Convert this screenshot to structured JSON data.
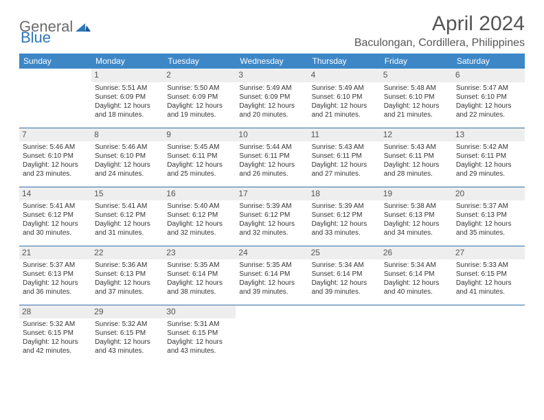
{
  "logo": {
    "general": "General",
    "blue": "Blue"
  },
  "title": "April 2024",
  "location": "Baculongan, Cordillera, Philippines",
  "dayHeaders": [
    "Sunday",
    "Monday",
    "Tuesday",
    "Wednesday",
    "Thursday",
    "Friday",
    "Saturday"
  ],
  "colors": {
    "headerBg": "#3d87c7",
    "headerText": "#ffffff",
    "dayNumBg": "#eeeeee",
    "rowBorder": "#2e6da4",
    "logoGray": "#6a6a6a",
    "logoBlue": "#2e77b8",
    "bodyText": "#333333",
    "titleText": "#555555"
  },
  "typography": {
    "titleFontSize": 30,
    "locationFontSize": 16,
    "headerFontSize": 12,
    "dayNumFontSize": 12,
    "cellFontSize": 10
  },
  "layout": {
    "weeks": 5,
    "cols": 7,
    "cellHeight": 86,
    "pageWidth": 792,
    "pageHeight": 612
  },
  "startOffset": 1,
  "days": [
    {
      "n": "1",
      "sunrise": "5:51 AM",
      "sunset": "6:09 PM",
      "dl": "12 hours and 18 minutes."
    },
    {
      "n": "2",
      "sunrise": "5:50 AM",
      "sunset": "6:09 PM",
      "dl": "12 hours and 19 minutes."
    },
    {
      "n": "3",
      "sunrise": "5:49 AM",
      "sunset": "6:09 PM",
      "dl": "12 hours and 20 minutes."
    },
    {
      "n": "4",
      "sunrise": "5:49 AM",
      "sunset": "6:10 PM",
      "dl": "12 hours and 21 minutes."
    },
    {
      "n": "5",
      "sunrise": "5:48 AM",
      "sunset": "6:10 PM",
      "dl": "12 hours and 21 minutes."
    },
    {
      "n": "6",
      "sunrise": "5:47 AM",
      "sunset": "6:10 PM",
      "dl": "12 hours and 22 minutes."
    },
    {
      "n": "7",
      "sunrise": "5:46 AM",
      "sunset": "6:10 PM",
      "dl": "12 hours and 23 minutes."
    },
    {
      "n": "8",
      "sunrise": "5:46 AM",
      "sunset": "6:10 PM",
      "dl": "12 hours and 24 minutes."
    },
    {
      "n": "9",
      "sunrise": "5:45 AM",
      "sunset": "6:11 PM",
      "dl": "12 hours and 25 minutes."
    },
    {
      "n": "10",
      "sunrise": "5:44 AM",
      "sunset": "6:11 PM",
      "dl": "12 hours and 26 minutes."
    },
    {
      "n": "11",
      "sunrise": "5:43 AM",
      "sunset": "6:11 PM",
      "dl": "12 hours and 27 minutes."
    },
    {
      "n": "12",
      "sunrise": "5:43 AM",
      "sunset": "6:11 PM",
      "dl": "12 hours and 28 minutes."
    },
    {
      "n": "13",
      "sunrise": "5:42 AM",
      "sunset": "6:11 PM",
      "dl": "12 hours and 29 minutes."
    },
    {
      "n": "14",
      "sunrise": "5:41 AM",
      "sunset": "6:12 PM",
      "dl": "12 hours and 30 minutes."
    },
    {
      "n": "15",
      "sunrise": "5:41 AM",
      "sunset": "6:12 PM",
      "dl": "12 hours and 31 minutes."
    },
    {
      "n": "16",
      "sunrise": "5:40 AM",
      "sunset": "6:12 PM",
      "dl": "12 hours and 32 minutes."
    },
    {
      "n": "17",
      "sunrise": "5:39 AM",
      "sunset": "6:12 PM",
      "dl": "12 hours and 32 minutes."
    },
    {
      "n": "18",
      "sunrise": "5:39 AM",
      "sunset": "6:12 PM",
      "dl": "12 hours and 33 minutes."
    },
    {
      "n": "19",
      "sunrise": "5:38 AM",
      "sunset": "6:13 PM",
      "dl": "12 hours and 34 minutes."
    },
    {
      "n": "20",
      "sunrise": "5:37 AM",
      "sunset": "6:13 PM",
      "dl": "12 hours and 35 minutes."
    },
    {
      "n": "21",
      "sunrise": "5:37 AM",
      "sunset": "6:13 PM",
      "dl": "12 hours and 36 minutes."
    },
    {
      "n": "22",
      "sunrise": "5:36 AM",
      "sunset": "6:13 PM",
      "dl": "12 hours and 37 minutes."
    },
    {
      "n": "23",
      "sunrise": "5:35 AM",
      "sunset": "6:14 PM",
      "dl": "12 hours and 38 minutes."
    },
    {
      "n": "24",
      "sunrise": "5:35 AM",
      "sunset": "6:14 PM",
      "dl": "12 hours and 39 minutes."
    },
    {
      "n": "25",
      "sunrise": "5:34 AM",
      "sunset": "6:14 PM",
      "dl": "12 hours and 39 minutes."
    },
    {
      "n": "26",
      "sunrise": "5:34 AM",
      "sunset": "6:14 PM",
      "dl": "12 hours and 40 minutes."
    },
    {
      "n": "27",
      "sunrise": "5:33 AM",
      "sunset": "6:15 PM",
      "dl": "12 hours and 41 minutes."
    },
    {
      "n": "28",
      "sunrise": "5:32 AM",
      "sunset": "6:15 PM",
      "dl": "12 hours and 42 minutes."
    },
    {
      "n": "29",
      "sunrise": "5:32 AM",
      "sunset": "6:15 PM",
      "dl": "12 hours and 43 minutes."
    },
    {
      "n": "30",
      "sunrise": "5:31 AM",
      "sunset": "6:15 PM",
      "dl": "12 hours and 43 minutes."
    }
  ],
  "labels": {
    "sunrise": "Sunrise: ",
    "sunset": "Sunset: ",
    "daylight": "Daylight: "
  }
}
